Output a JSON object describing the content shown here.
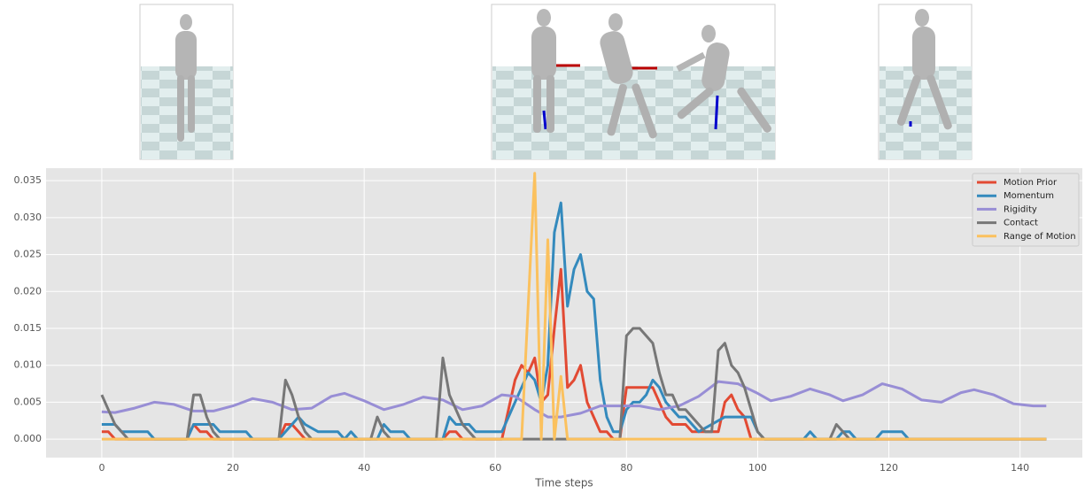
{
  "chart_data": {
    "type": "line",
    "xlabel": "Time steps",
    "xlim": [
      -8.5,
      149.5
    ],
    "ylim": [
      -0.0025,
      0.0367
    ],
    "xticks": [
      0,
      20,
      40,
      60,
      80,
      100,
      120,
      140
    ],
    "yticks": [
      {
        "value": 0,
        "label": "0.000"
      },
      {
        "value": 0.005,
        "label": "0.005"
      },
      {
        "value": 0.01,
        "label": "0.010"
      },
      {
        "value": 0.015,
        "label": "0.015"
      },
      {
        "value": 0.02,
        "label": "0.020"
      },
      {
        "value": 0.025,
        "label": "0.025"
      },
      {
        "value": 0.03,
        "label": "0.030"
      },
      {
        "value": 0.035,
        "label": "0.035"
      }
    ],
    "grid": true,
    "legend": "upper right",
    "series": [
      {
        "name": "Motion Prior",
        "color": "#e24a33",
        "x": [
          0,
          1,
          2,
          13,
          14,
          15,
          16,
          17,
          27,
          28,
          29,
          30,
          31,
          52,
          53,
          54,
          55,
          61,
          62,
          63,
          64,
          65,
          66,
          67,
          68,
          69,
          70,
          71,
          72,
          73,
          74,
          75,
          76,
          77,
          78,
          79,
          80,
          83,
          84,
          85,
          86,
          87,
          89,
          90,
          94,
          95,
          96,
          97,
          98,
          99,
          144
        ],
        "values": [
          0.001,
          0.001,
          0,
          0,
          0.002,
          0.001,
          0.001,
          0,
          0,
          0.002,
          0.002,
          0.001,
          0,
          0,
          0.001,
          0.001,
          0,
          0,
          0.004,
          0.008,
          0.01,
          0.009,
          0.011,
          0.005,
          0.006,
          0.015,
          0.023,
          0.007,
          0.008,
          0.01,
          0.005,
          0.003,
          0.001,
          0.001,
          0,
          0,
          0.007,
          0.007,
          0.007,
          0.005,
          0.003,
          0.002,
          0.002,
          0.001,
          0.001,
          0.005,
          0.006,
          0.004,
          0.003,
          0,
          0
        ]
      },
      {
        "name": "Momentum",
        "color": "#348abd",
        "x": [
          0,
          2,
          3,
          7,
          8,
          13,
          14,
          17,
          18,
          22,
          23,
          27,
          28,
          29,
          30,
          31,
          33,
          36,
          37,
          38,
          39,
          42,
          43,
          44,
          46,
          47,
          52,
          53,
          54,
          56,
          57,
          61,
          62,
          63,
          64,
          65,
          66,
          67,
          68,
          69,
          70,
          71,
          72,
          73,
          74,
          75,
          76,
          77,
          78,
          79,
          80,
          81,
          82,
          83,
          84,
          85,
          86,
          87,
          88,
          89,
          90,
          91,
          95,
          99,
          100,
          101,
          107,
          108,
          109,
          112,
          113,
          114,
          115,
          118,
          119,
          122,
          123,
          144
        ],
        "values": [
          0.002,
          0.002,
          0.001,
          0.001,
          0,
          0,
          0.002,
          0.002,
          0.001,
          0.001,
          0,
          0,
          0.001,
          0.002,
          0.003,
          0.002,
          0.001,
          0.001,
          0,
          0.001,
          0,
          0,
          0.002,
          0.001,
          0.001,
          0,
          0,
          0.003,
          0.002,
          0.002,
          0.001,
          0.001,
          0.003,
          0.005,
          0.007,
          0.009,
          0.008,
          0.005,
          0.01,
          0.028,
          0.032,
          0.018,
          0.023,
          0.025,
          0.02,
          0.019,
          0.008,
          0.003,
          0.001,
          0.001,
          0.004,
          0.005,
          0.005,
          0.006,
          0.008,
          0.007,
          0.005,
          0.004,
          0.003,
          0.003,
          0.002,
          0.001,
          0.003,
          0.003,
          0.001,
          0,
          0,
          0.001,
          0,
          0,
          0.001,
          0.001,
          0,
          0,
          0.001,
          0.001,
          0,
          0
        ]
      },
      {
        "name": "Rigidity",
        "color": "#988ed5",
        "x": [
          0,
          2,
          5,
          8,
          11,
          14,
          17,
          20,
          23,
          26,
          29,
          32,
          35,
          37,
          40,
          43,
          46,
          49,
          52,
          55,
          58,
          61,
          63,
          66,
          68,
          70,
          73,
          76,
          79,
          82,
          85,
          88,
          91,
          94,
          97,
          100,
          102,
          105,
          108,
          111,
          113,
          116,
          119,
          122,
          125,
          128,
          131,
          133,
          136,
          139,
          142,
          144
        ],
        "values": [
          0.0037,
          0.0036,
          0.0042,
          0.005,
          0.0047,
          0.0038,
          0.0038,
          0.0045,
          0.0055,
          0.005,
          0.004,
          0.0042,
          0.0058,
          0.0062,
          0.0052,
          0.004,
          0.0047,
          0.0057,
          0.0053,
          0.004,
          0.0045,
          0.006,
          0.0058,
          0.004,
          0.003,
          0.003,
          0.0035,
          0.0045,
          0.0045,
          0.0045,
          0.004,
          0.0045,
          0.0058,
          0.0078,
          0.0075,
          0.0062,
          0.0052,
          0.0058,
          0.0068,
          0.006,
          0.0052,
          0.006,
          0.0075,
          0.0068,
          0.0053,
          0.005,
          0.0063,
          0.0067,
          0.006,
          0.0048,
          0.0045,
          0.0045
        ]
      },
      {
        "name": "Contact",
        "color": "#777777",
        "x": [
          0,
          1,
          2,
          3,
          4,
          13,
          14,
          15,
          16,
          17,
          18,
          27,
          28,
          29,
          30,
          31,
          32,
          41,
          42,
          43,
          44,
          51,
          52,
          53,
          54,
          55,
          56,
          57,
          79,
          80,
          81,
          82,
          83,
          84,
          85,
          86,
          87,
          88,
          89,
          90,
          91,
          92,
          93,
          94,
          95,
          96,
          97,
          98,
          99,
          100,
          101,
          111,
          112,
          113,
          114,
          144
        ],
        "values": [
          0.006,
          0.004,
          0.002,
          0.001,
          0,
          0,
          0.006,
          0.006,
          0.003,
          0.001,
          0,
          0,
          0.008,
          0.006,
          0.003,
          0.001,
          0,
          0,
          0.003,
          0.001,
          0,
          0,
          0.011,
          0.006,
          0.004,
          0.002,
          0.001,
          0,
          0,
          0.014,
          0.015,
          0.015,
          0.014,
          0.013,
          0.009,
          0.006,
          0.006,
          0.004,
          0.004,
          0.003,
          0.002,
          0.001,
          0.001,
          0.012,
          0.013,
          0.01,
          0.009,
          0.007,
          0.004,
          0.001,
          0,
          0,
          0.002,
          0.001,
          0,
          0
        ]
      },
      {
        "name": "Range of Motion",
        "color": "#fbc15e",
        "x": [
          0,
          64,
          65,
          66,
          67,
          68,
          69,
          70,
          71,
          144
        ],
        "values": [
          0,
          0,
          0.018,
          0.036,
          0,
          0.027,
          0,
          0.0085,
          0,
          0
        ]
      }
    ]
  }
}
